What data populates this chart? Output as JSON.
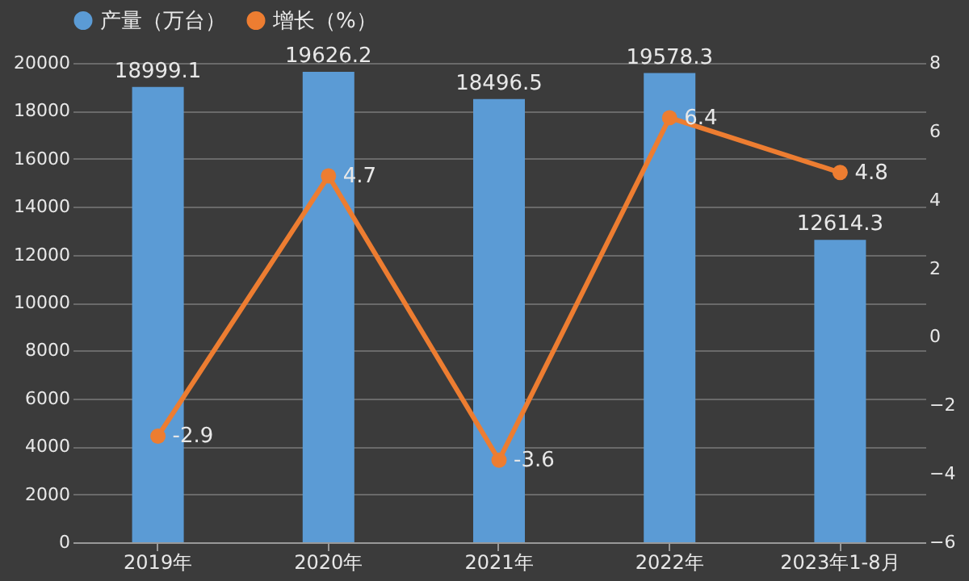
{
  "chart_data": {
    "type": "bar",
    "categories": [
      "2019年",
      "2020年",
      "2021年",
      "2022年",
      "2023年1-8月"
    ],
    "series": [
      {
        "name": "产量（万台）",
        "color": "#5b9bd5",
        "values": [
          18999.1,
          19626.2,
          18496.5,
          19578.3,
          12614.3
        ]
      },
      {
        "name": "增长（%）",
        "type": "line",
        "axis": "y2",
        "color": "#ed7d31",
        "values": [
          -2.9,
          4.7,
          -3.6,
          6.4,
          4.8
        ]
      }
    ],
    "ylim": [
      0,
      20000
    ],
    "yticks": [
      0,
      2000,
      4000,
      6000,
      8000,
      10000,
      12000,
      14000,
      16000,
      18000,
      20000
    ],
    "y2lim": [
      -6,
      8
    ],
    "y2ticks": [
      -6,
      -4,
      -2,
      0,
      2,
      4,
      6,
      8
    ],
    "grid": "y",
    "legend": "top",
    "marker": "circle",
    "line_style": "solid",
    "data_labels": true
  }
}
